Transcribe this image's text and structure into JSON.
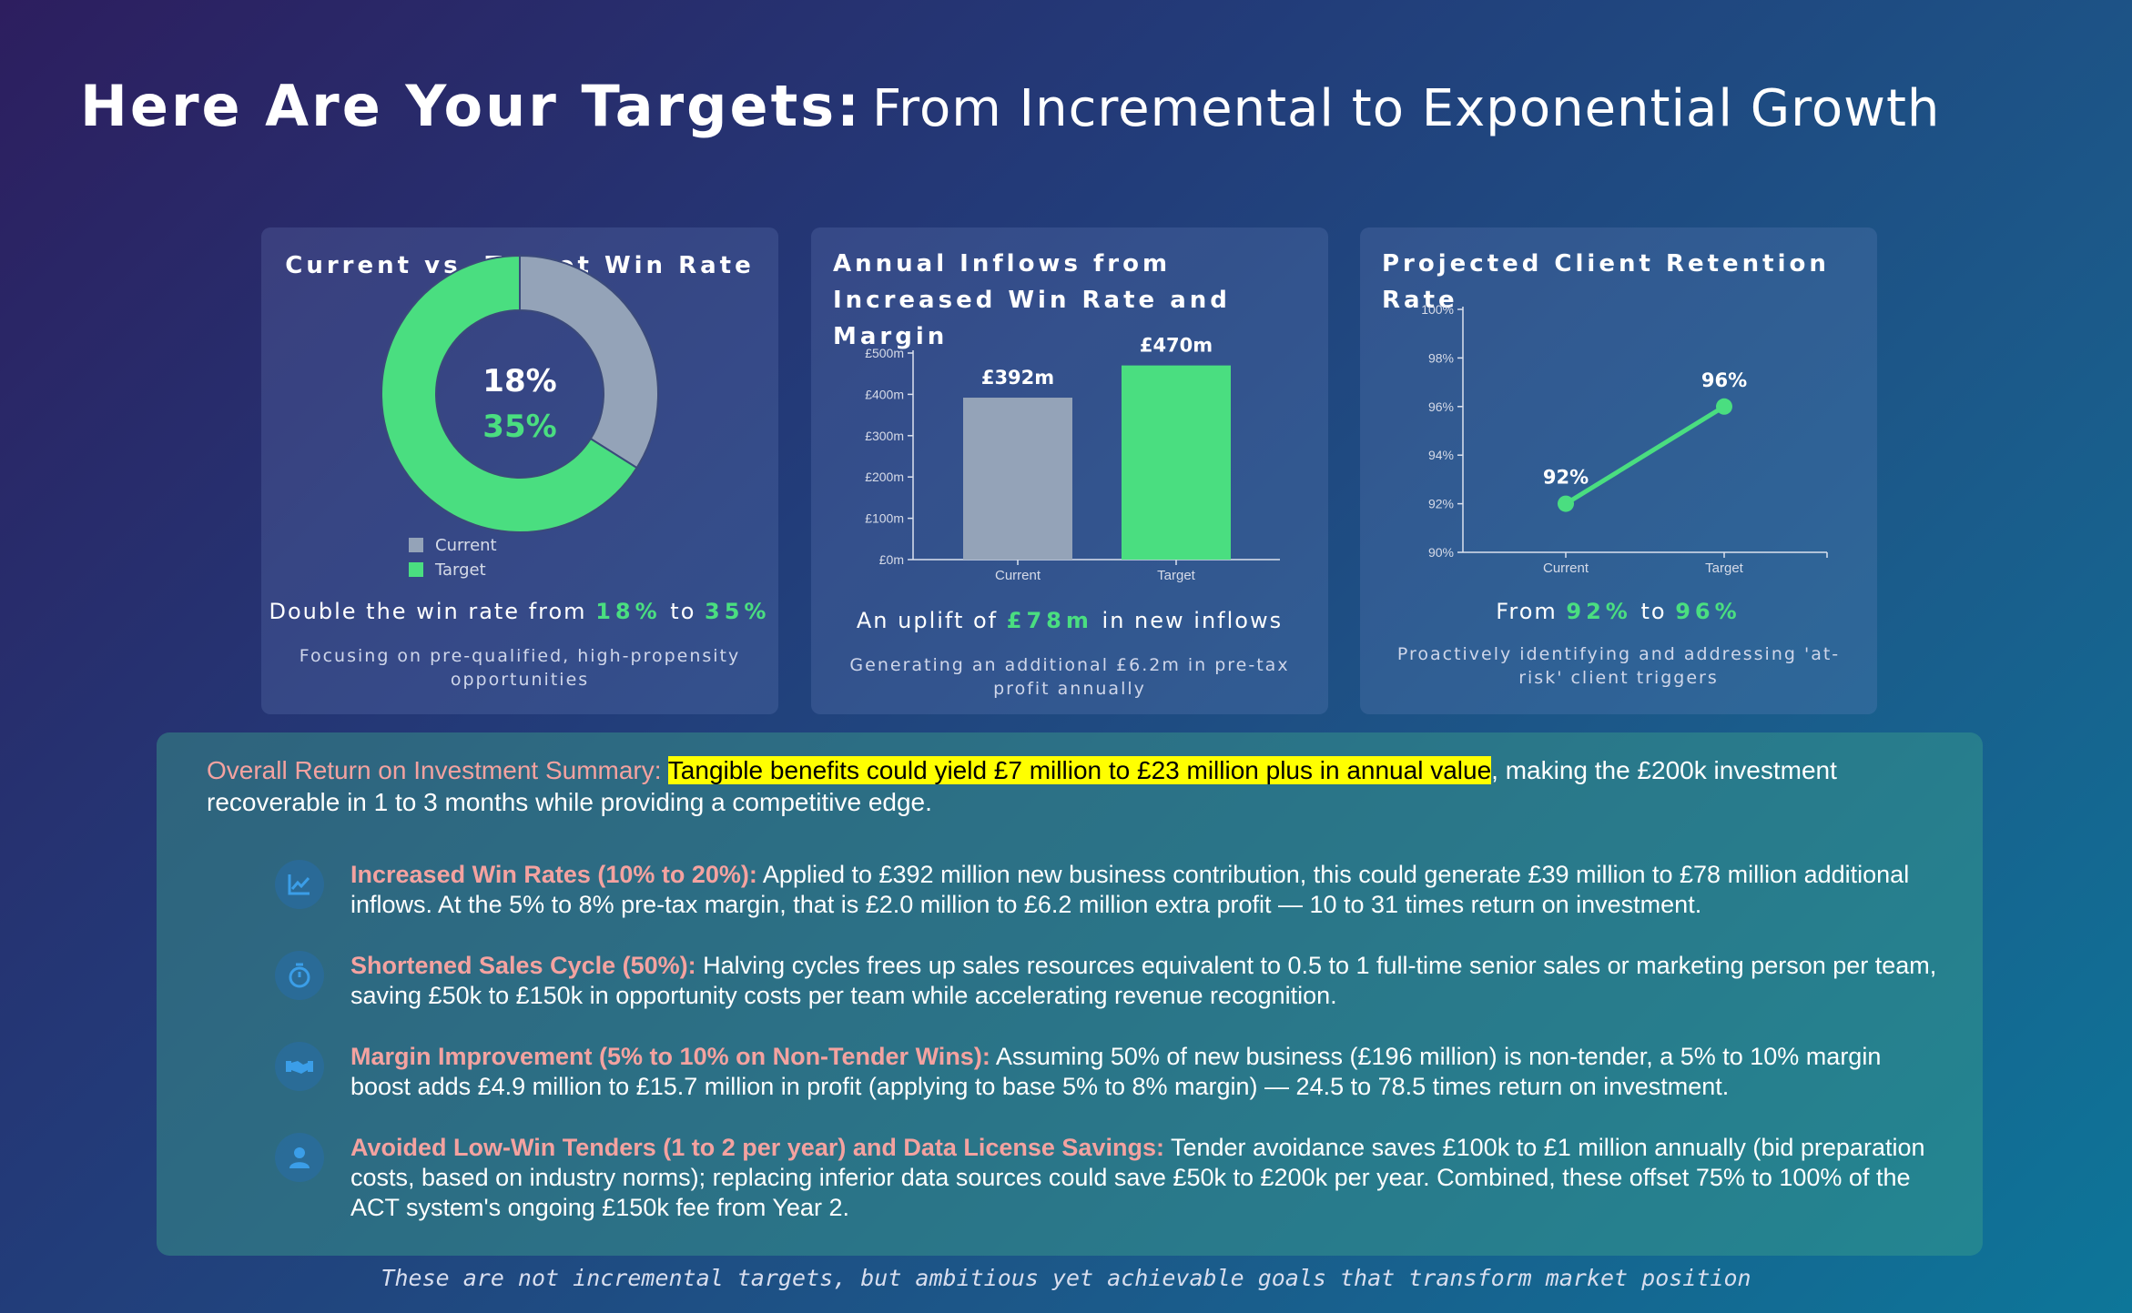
{
  "page": {
    "title_main": "Here Are Your Targets:",
    "title_sub": "From Incremental to Exponential Growth",
    "footer": "These are not incremental targets, but ambitious yet achievable goals that transform market position"
  },
  "colors": {
    "accent_green": "#4ade80",
    "current_grey": "#94a3b8",
    "salmon": "#f4a2a0",
    "highlight_yellow": "#ffff00"
  },
  "cards": {
    "win_rate": {
      "title": "Current vs. Target Win Rate",
      "center_current": "18%",
      "center_target": "35%",
      "headline_prefix": "Double the win rate from",
      "headline_from": "18%",
      "headline_to_word": "to",
      "headline_to": "35%",
      "desc": "Focusing on pre-qualified, high-propensity opportunities"
    },
    "inflows": {
      "title": "Annual Inflows from Increased Win Rate and Margin",
      "headline_prefix": "An uplift of",
      "headline_value": "£78m",
      "headline_suffix": "in new inflows",
      "desc": "Generating an additional £6.2m in pre-tax profit annually"
    },
    "retention": {
      "title": "Projected Client Retention Rate",
      "headline_prefix": "From",
      "headline_from": "92%",
      "headline_to_word": "to",
      "headline_to": "96%",
      "desc": "Proactively identifying and addressing 'at-risk' client triggers"
    }
  },
  "chart_data": [
    {
      "type": "pie",
      "title": "Current vs. Target Win Rate",
      "labels": [
        "Current",
        "Target"
      ],
      "values": [
        18,
        35
      ],
      "data_labels": [
        "18%",
        "35%"
      ],
      "colors": [
        "#94a3b8",
        "#4ade80"
      ],
      "legend": "bottom-left"
    },
    {
      "type": "bar",
      "title": "Annual Inflows from Increased Win Rate and Margin",
      "categories": [
        "Current",
        "Target"
      ],
      "values": [
        392,
        470
      ],
      "data_labels": [
        "£392m",
        "£470m"
      ],
      "colors": [
        "#94a3b8",
        "#4ade80"
      ],
      "ylim": [
        0,
        500
      ],
      "yticks": [
        0,
        100,
        200,
        300,
        400,
        500
      ],
      "ytick_labels": [
        "£0m",
        "£100m",
        "£200m",
        "£300m",
        "£400m",
        "£500m"
      ]
    },
    {
      "type": "line",
      "title": "Projected Client Retention Rate",
      "categories": [
        "Current",
        "Target"
      ],
      "values": [
        92,
        96
      ],
      "data_labels": [
        "92%",
        "96%"
      ],
      "color": "#4ade80",
      "ylim": [
        90,
        100
      ],
      "yticks": [
        90,
        92,
        94,
        96,
        98,
        100
      ],
      "ytick_labels": [
        "90%",
        "92%",
        "94%",
        "96%",
        "98%",
        "100%"
      ]
    }
  ],
  "summary": {
    "label": "Overall Return on Investment Summary:",
    "highlight": "Tangible benefits could yield £7 million to £23 million plus in annual value",
    "rest": ", making the £200k investment recoverable in 1 to 3 months while providing a competitive edge.",
    "benefits": [
      {
        "icon": "line-chart-icon",
        "title": "Increased Win Rates (10% to 20%):",
        "text": " Applied to £392 million new business contribution, this could generate £39 million to £78 million additional inflows. At the 5% to 8% pre-tax margin, that is £2.0 million to £6.2 million extra profit — 10 to 31 times return on investment."
      },
      {
        "icon": "stopwatch-icon",
        "title": "Shortened Sales Cycle (50%):",
        "text": " Halving cycles frees up sales resources equivalent to 0.5 to 1 full-time senior sales or marketing person per team, saving £50k to £150k in opportunity costs per team while accelerating revenue recognition."
      },
      {
        "icon": "handshake-icon",
        "title": "Margin Improvement (5% to 10% on Non-Tender Wins):",
        "text": " Assuming 50% of new business (£196 million) is non-tender, a 5% to 10% margin boost adds £4.9 million to £15.7 million in profit (applying to base 5% to 8% margin) — 24.5 to 78.5 times return on investment."
      },
      {
        "icon": "user-icon",
        "title": "Avoided Low-Win Tenders (1 to 2 per year) and Data License Savings:",
        "text": " Tender avoidance saves £100k to £1 million annually (bid preparation costs, based on industry norms); replacing inferior data sources could save £50k to £200k per year. Combined, these offset 75% to 100% of the ACT system's ongoing £150k fee from Year 2."
      }
    ]
  }
}
